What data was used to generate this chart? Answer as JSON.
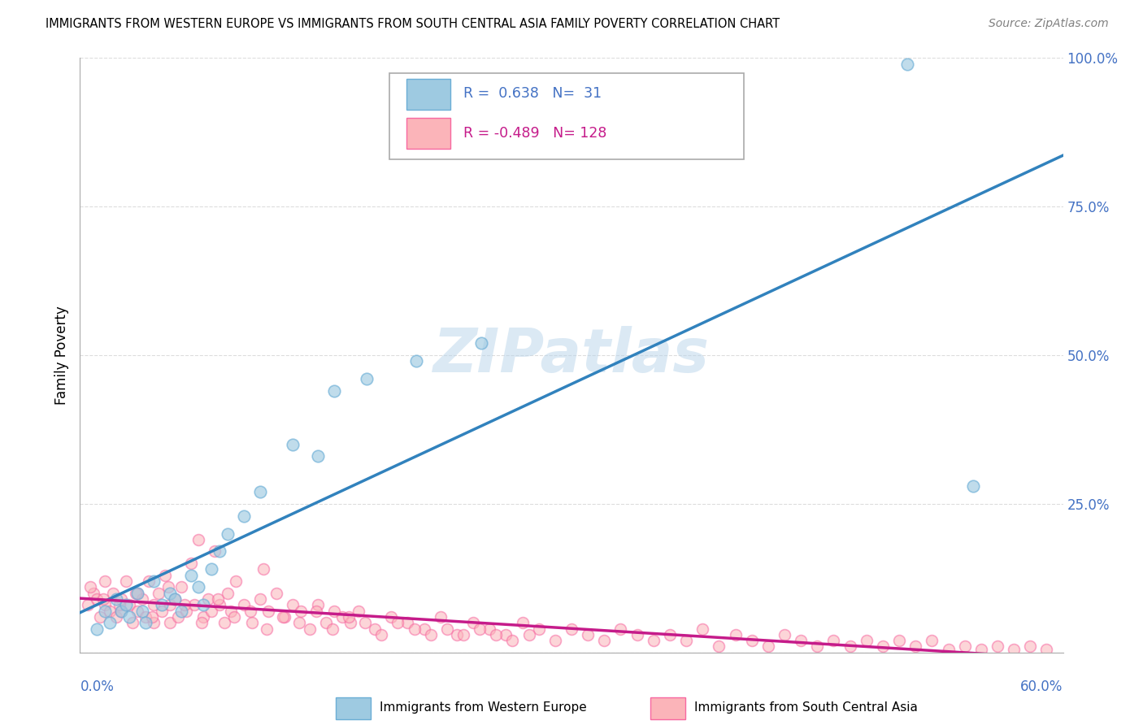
{
  "title": "IMMIGRANTS FROM WESTERN EUROPE VS IMMIGRANTS FROM SOUTH CENTRAL ASIA FAMILY POVERTY CORRELATION CHART",
  "source": "Source: ZipAtlas.com",
  "ylabel": "Family Poverty",
  "xlim": [
    0.0,
    0.6
  ],
  "ylim": [
    0.0,
    1.0
  ],
  "yticks": [
    0.0,
    0.25,
    0.5,
    0.75,
    1.0
  ],
  "ytick_labels": [
    "",
    "25.0%",
    "50.0%",
    "75.0%",
    "100.0%"
  ],
  "blue_R": 0.638,
  "blue_N": 31,
  "pink_R": -0.489,
  "pink_N": 128,
  "blue_color": "#9ecae1",
  "pink_color": "#fbb4b9",
  "blue_edge_color": "#6baed6",
  "pink_edge_color": "#f768a1",
  "blue_line_color": "#3182bd",
  "pink_line_color": "#c51b8a",
  "watermark_color": "#b8d4ea",
  "label_blue": "Immigrants from Western Europe",
  "label_pink": "Immigrants from South Central Asia",
  "axis_label_color": "#4472c4",
  "background_color": "#ffffff",
  "grid_color": "#dddddd",
  "blue_scatter_x": [
    0.01,
    0.015,
    0.018,
    0.022,
    0.025,
    0.028,
    0.03,
    0.035,
    0.038,
    0.04,
    0.045,
    0.05,
    0.055,
    0.058,
    0.062,
    0.068,
    0.072,
    0.075,
    0.08,
    0.085,
    0.09,
    0.1,
    0.11,
    0.13,
    0.145,
    0.155,
    0.175,
    0.205,
    0.245,
    0.505,
    0.545
  ],
  "blue_scatter_y": [
    0.04,
    0.07,
    0.05,
    0.09,
    0.07,
    0.08,
    0.06,
    0.1,
    0.07,
    0.05,
    0.12,
    0.08,
    0.1,
    0.09,
    0.07,
    0.13,
    0.11,
    0.08,
    0.14,
    0.17,
    0.2,
    0.23,
    0.27,
    0.35,
    0.33,
    0.44,
    0.46,
    0.49,
    0.52,
    0.99,
    0.28
  ],
  "pink_scatter_x": [
    0.005,
    0.008,
    0.01,
    0.012,
    0.015,
    0.015,
    0.018,
    0.02,
    0.022,
    0.025,
    0.025,
    0.028,
    0.03,
    0.032,
    0.035,
    0.035,
    0.038,
    0.04,
    0.042,
    0.045,
    0.045,
    0.048,
    0.05,
    0.052,
    0.055,
    0.055,
    0.058,
    0.06,
    0.062,
    0.065,
    0.068,
    0.07,
    0.072,
    0.075,
    0.078,
    0.08,
    0.082,
    0.085,
    0.088,
    0.09,
    0.092,
    0.095,
    0.1,
    0.105,
    0.11,
    0.112,
    0.115,
    0.12,
    0.125,
    0.13,
    0.135,
    0.14,
    0.145,
    0.15,
    0.155,
    0.16,
    0.165,
    0.17,
    0.18,
    0.19,
    0.2,
    0.21,
    0.22,
    0.23,
    0.24,
    0.25,
    0.26,
    0.27,
    0.28,
    0.29,
    0.3,
    0.31,
    0.32,
    0.33,
    0.34,
    0.35,
    0.36,
    0.37,
    0.38,
    0.39,
    0.4,
    0.41,
    0.42,
    0.43,
    0.44,
    0.45,
    0.46,
    0.47,
    0.48,
    0.49,
    0.5,
    0.51,
    0.52,
    0.53,
    0.54,
    0.55,
    0.56,
    0.57,
    0.58,
    0.59,
    0.006,
    0.014,
    0.024,
    0.034,
    0.044,
    0.054,
    0.064,
    0.074,
    0.084,
    0.094,
    0.104,
    0.114,
    0.124,
    0.134,
    0.144,
    0.154,
    0.164,
    0.174,
    0.184,
    0.194,
    0.204,
    0.214,
    0.224,
    0.234,
    0.244,
    0.254,
    0.264,
    0.274
  ],
  "pink_scatter_y": [
    0.08,
    0.1,
    0.09,
    0.06,
    0.08,
    0.12,
    0.07,
    0.1,
    0.06,
    0.09,
    0.07,
    0.12,
    0.08,
    0.05,
    0.1,
    0.07,
    0.09,
    0.06,
    0.12,
    0.08,
    0.05,
    0.1,
    0.07,
    0.13,
    0.08,
    0.05,
    0.09,
    0.06,
    0.11,
    0.07,
    0.15,
    0.08,
    0.19,
    0.06,
    0.09,
    0.07,
    0.17,
    0.08,
    0.05,
    0.1,
    0.07,
    0.12,
    0.08,
    0.05,
    0.09,
    0.14,
    0.07,
    0.1,
    0.06,
    0.08,
    0.07,
    0.04,
    0.08,
    0.05,
    0.07,
    0.06,
    0.05,
    0.07,
    0.04,
    0.06,
    0.05,
    0.04,
    0.06,
    0.03,
    0.05,
    0.04,
    0.03,
    0.05,
    0.04,
    0.02,
    0.04,
    0.03,
    0.02,
    0.04,
    0.03,
    0.02,
    0.03,
    0.02,
    0.04,
    0.01,
    0.03,
    0.02,
    0.01,
    0.03,
    0.02,
    0.01,
    0.02,
    0.01,
    0.02,
    0.01,
    0.02,
    0.01,
    0.02,
    0.005,
    0.01,
    0.005,
    0.01,
    0.005,
    0.01,
    0.005,
    0.11,
    0.09,
    0.08,
    0.1,
    0.06,
    0.11,
    0.08,
    0.05,
    0.09,
    0.06,
    0.07,
    0.04,
    0.06,
    0.05,
    0.07,
    0.04,
    0.06,
    0.05,
    0.03,
    0.05,
    0.04,
    0.03,
    0.04,
    0.03,
    0.04,
    0.03,
    0.02,
    0.03
  ]
}
